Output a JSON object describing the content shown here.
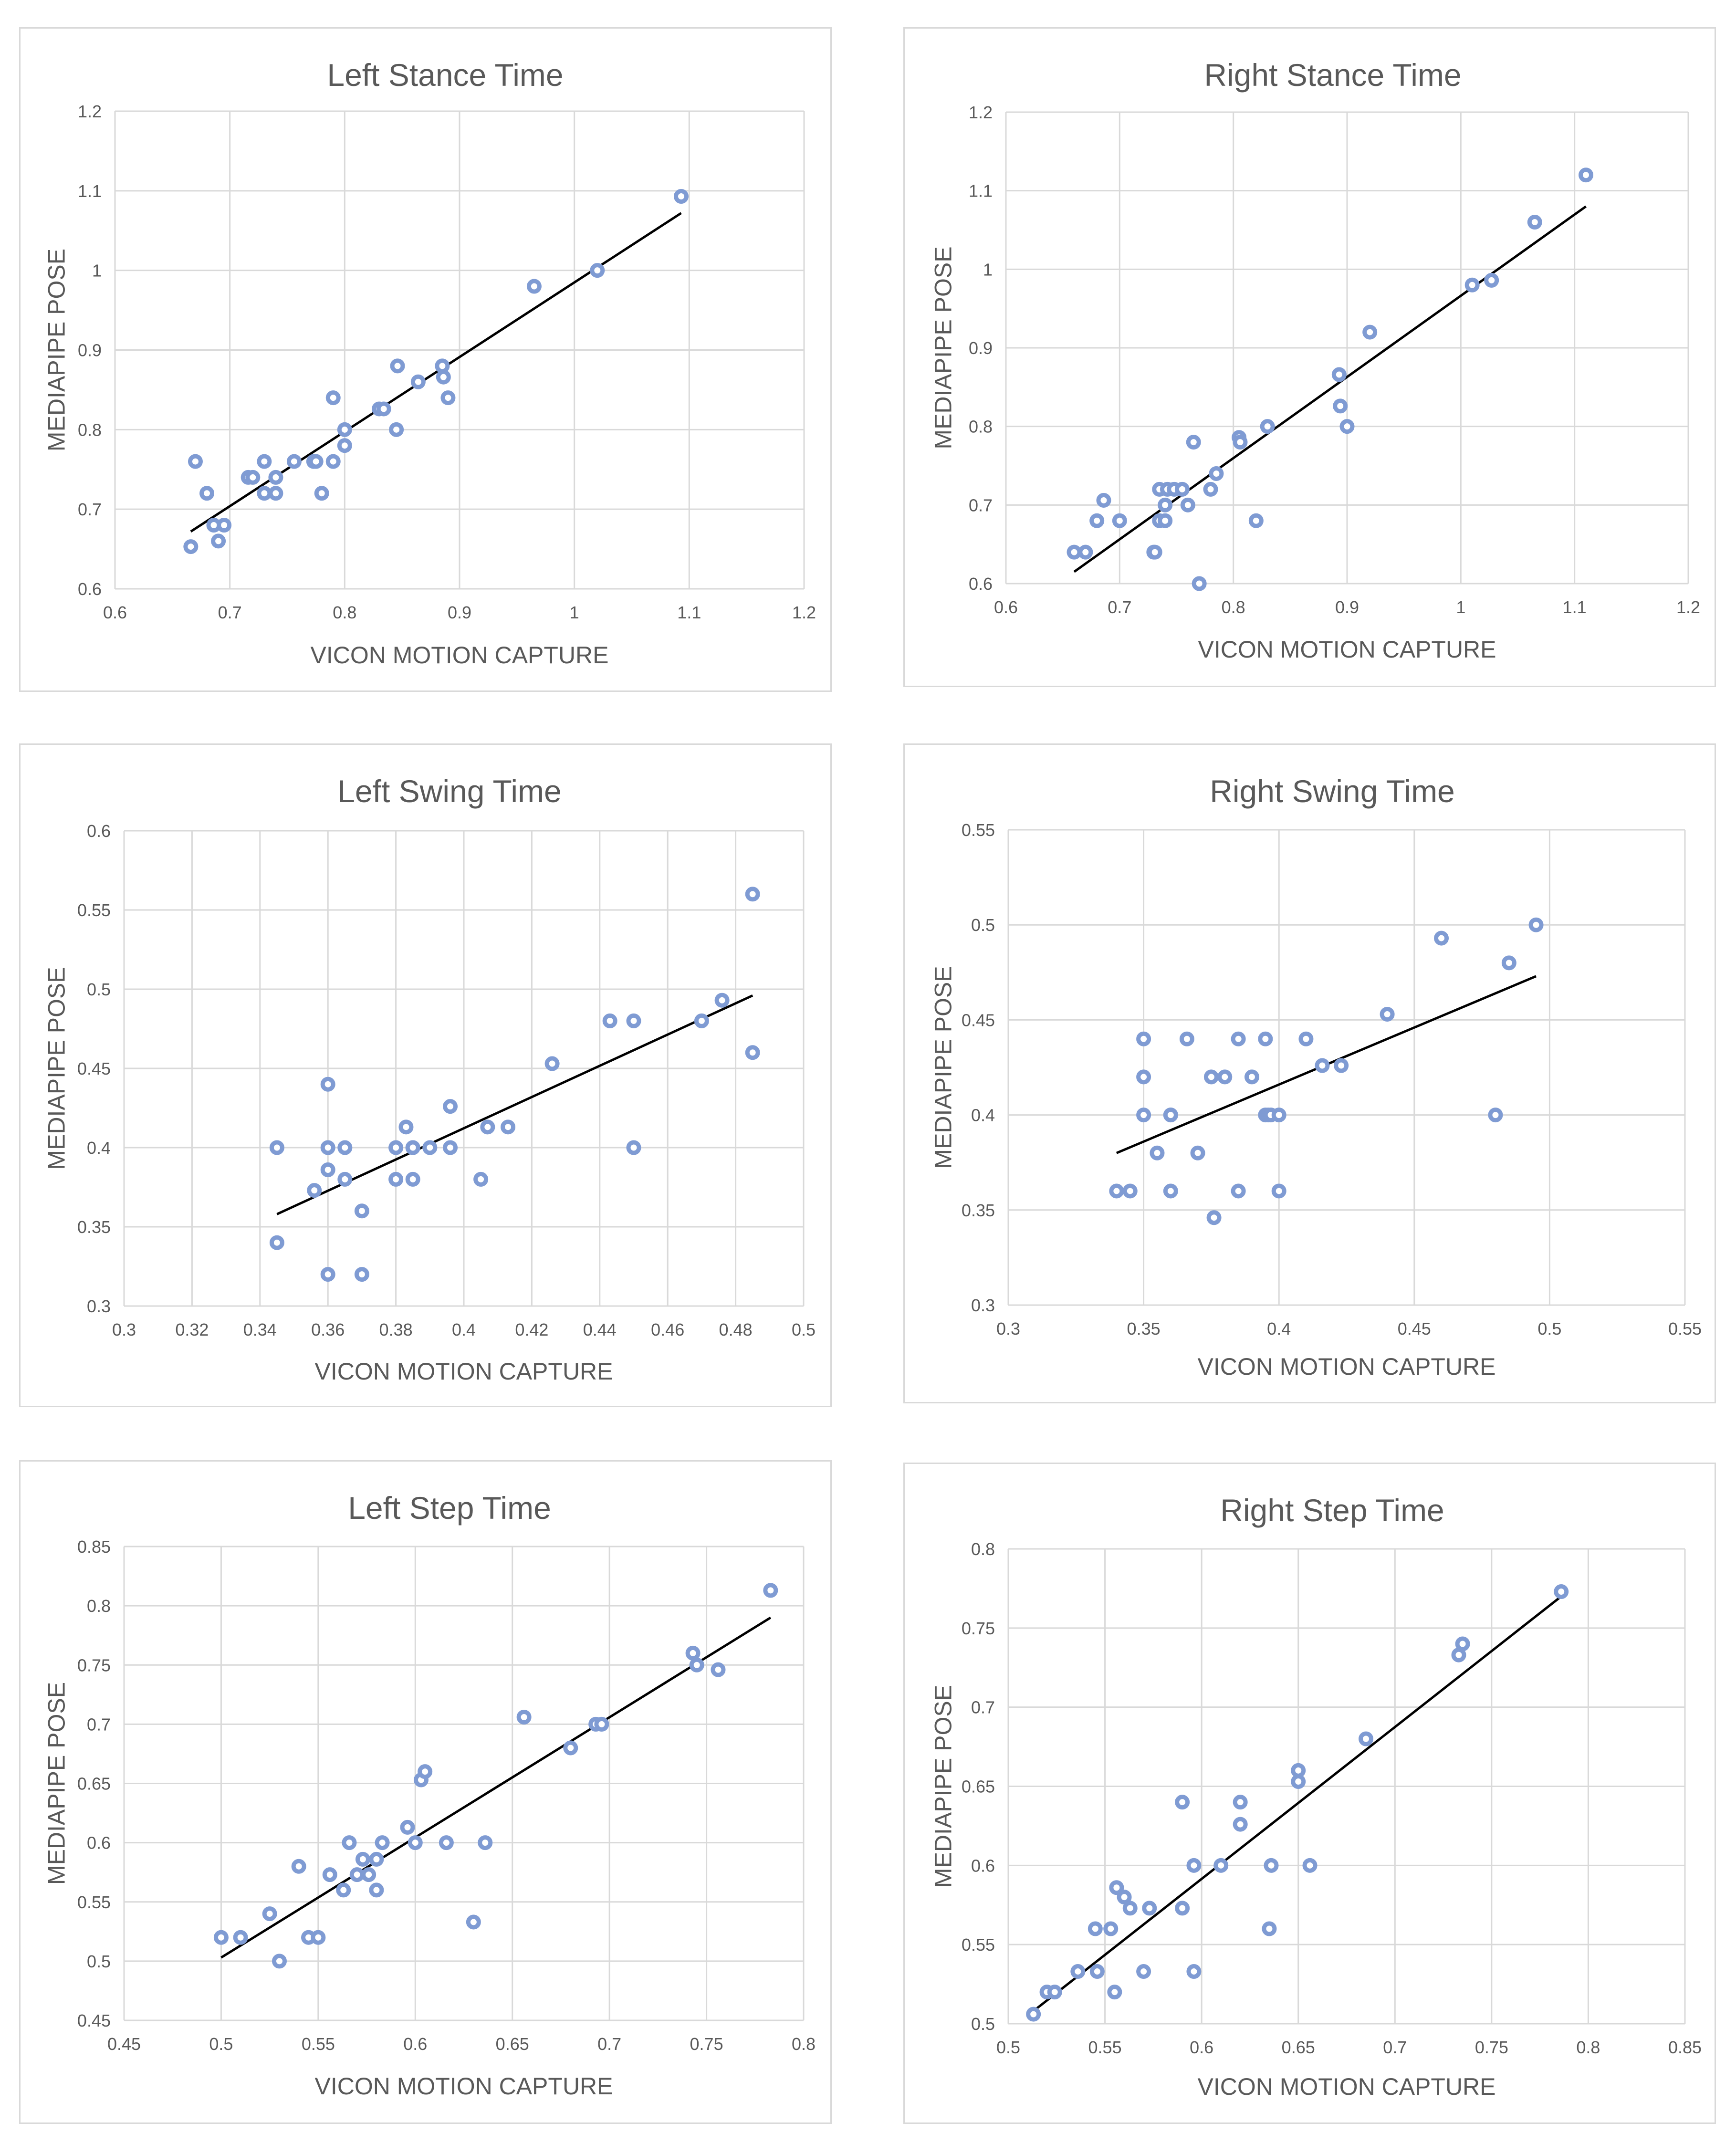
{
  "chart_data": [
    {
      "type": "scatter",
      "title": "Left Stance Time",
      "xlabel": "VICON MOTION CAPTURE",
      "ylabel": "MEDIAPIPE POSE",
      "xlim": [
        0.6,
        1.2
      ],
      "ylim": [
        0.6,
        1.2
      ],
      "xticks": [
        0.6,
        0.7,
        0.8,
        0.9,
        1.0,
        1.1,
        1.2
      ],
      "yticks": [
        0.6,
        0.7,
        0.8,
        0.9,
        1.0,
        1.1,
        1.2
      ],
      "xtick_labels": [
        "0.6",
        "0.7",
        "0.8",
        "0.9",
        "1",
        "1.1",
        "1.2"
      ],
      "ytick_labels": [
        "0.6",
        "0.7",
        "0.8",
        "0.9",
        "1",
        "1.1",
        "1.2"
      ],
      "points": [
        [
          0.666,
          0.653
        ],
        [
          0.67,
          0.76
        ],
        [
          0.68,
          0.72
        ],
        [
          0.686,
          0.68
        ],
        [
          0.69,
          0.66
        ],
        [
          0.695,
          0.68
        ],
        [
          0.716,
          0.74
        ],
        [
          0.72,
          0.74
        ],
        [
          0.73,
          0.76
        ],
        [
          0.73,
          0.72
        ],
        [
          0.74,
          0.74
        ],
        [
          0.74,
          0.72
        ],
        [
          0.756,
          0.76
        ],
        [
          0.773,
          0.76
        ],
        [
          0.775,
          0.76
        ],
        [
          0.78,
          0.72
        ],
        [
          0.79,
          0.76
        ],
        [
          0.79,
          0.84
        ],
        [
          0.8,
          0.78
        ],
        [
          0.8,
          0.8
        ],
        [
          0.83,
          0.826
        ],
        [
          0.834,
          0.826
        ],
        [
          0.845,
          0.8
        ],
        [
          0.846,
          0.88
        ],
        [
          0.864,
          0.86
        ],
        [
          0.885,
          0.88
        ],
        [
          0.886,
          0.866
        ],
        [
          0.89,
          0.84
        ],
        [
          0.965,
          0.98
        ],
        [
          1.02,
          1.0
        ],
        [
          1.093,
          1.093
        ]
      ],
      "trendline": [
        [
          0.666,
          0.672
        ],
        [
          1.093,
          1.072
        ]
      ]
    },
    {
      "type": "scatter",
      "title": "Right Stance Time",
      "xlabel": "VICON MOTION CAPTURE",
      "ylabel": "MEDIAPIPE POSE",
      "xlim": [
        0.6,
        1.2
      ],
      "ylim": [
        0.6,
        1.2
      ],
      "xticks": [
        0.6,
        0.7,
        0.8,
        0.9,
        1.0,
        1.1,
        1.2
      ],
      "yticks": [
        0.6,
        0.7,
        0.8,
        0.9,
        1.0,
        1.1,
        1.2
      ],
      "xtick_labels": [
        "0.6",
        "0.7",
        "0.8",
        "0.9",
        "1",
        "1.1",
        "1.2"
      ],
      "ytick_labels": [
        "0.6",
        "0.7",
        "0.8",
        "0.9",
        "1",
        "1.1",
        "1.2"
      ],
      "points": [
        [
          0.66,
          0.64
        ],
        [
          0.67,
          0.64
        ],
        [
          0.68,
          0.68
        ],
        [
          0.686,
          0.706
        ],
        [
          0.7,
          0.68
        ],
        [
          0.73,
          0.64
        ],
        [
          0.731,
          0.64
        ],
        [
          0.735,
          0.68
        ],
        [
          0.735,
          0.72
        ],
        [
          0.74,
          0.68
        ],
        [
          0.74,
          0.7
        ],
        [
          0.742,
          0.72
        ],
        [
          0.748,
          0.72
        ],
        [
          0.755,
          0.72
        ],
        [
          0.76,
          0.7
        ],
        [
          0.765,
          0.78
        ],
        [
          0.77,
          0.6
        ],
        [
          0.78,
          0.72
        ],
        [
          0.785,
          0.74
        ],
        [
          0.805,
          0.786
        ],
        [
          0.806,
          0.78
        ],
        [
          0.82,
          0.68
        ],
        [
          0.83,
          0.8
        ],
        [
          0.893,
          0.866
        ],
        [
          0.894,
          0.826
        ],
        [
          0.9,
          0.8
        ],
        [
          0.92,
          0.92
        ],
        [
          1.01,
          0.98
        ],
        [
          1.027,
          0.986
        ],
        [
          1.065,
          1.06
        ],
        [
          1.11,
          1.12
        ]
      ],
      "trendline": [
        [
          0.66,
          0.615
        ],
        [
          1.11,
          1.08
        ]
      ]
    },
    {
      "type": "scatter",
      "title": "Left Swing Time",
      "xlabel": "VICON MOTION CAPTURE",
      "ylabel": "MEDIAPIPE POSE",
      "xlim": [
        0.3,
        0.5
      ],
      "ylim": [
        0.3,
        0.6
      ],
      "xticks": [
        0.3,
        0.32,
        0.34,
        0.36,
        0.38,
        0.4,
        0.42,
        0.44,
        0.46,
        0.48,
        0.5
      ],
      "yticks": [
        0.3,
        0.35,
        0.4,
        0.45,
        0.5,
        0.55,
        0.6
      ],
      "xtick_labels": [
        "0.3",
        "0.32",
        "0.34",
        "0.36",
        "0.38",
        "0.4",
        "0.42",
        "0.44",
        "0.46",
        "0.48",
        "0.5"
      ],
      "ytick_labels": [
        "0.3",
        "0.35",
        "0.4",
        "0.45",
        "0.5",
        "0.55",
        "0.6"
      ],
      "points": [
        [
          0.345,
          0.4
        ],
        [
          0.345,
          0.34
        ],
        [
          0.356,
          0.373
        ],
        [
          0.36,
          0.32
        ],
        [
          0.36,
          0.386
        ],
        [
          0.36,
          0.4
        ],
        [
          0.36,
          0.44
        ],
        [
          0.365,
          0.38
        ],
        [
          0.365,
          0.4
        ],
        [
          0.37,
          0.32
        ],
        [
          0.37,
          0.36
        ],
        [
          0.38,
          0.38
        ],
        [
          0.38,
          0.4
        ],
        [
          0.383,
          0.413
        ],
        [
          0.385,
          0.38
        ],
        [
          0.385,
          0.4
        ],
        [
          0.385,
          0.4
        ],
        [
          0.39,
          0.4
        ],
        [
          0.396,
          0.4
        ],
        [
          0.396,
          0.426
        ],
        [
          0.405,
          0.38
        ],
        [
          0.407,
          0.413
        ],
        [
          0.413,
          0.413
        ],
        [
          0.426,
          0.453
        ],
        [
          0.443,
          0.48
        ],
        [
          0.45,
          0.48
        ],
        [
          0.45,
          0.4
        ],
        [
          0.47,
          0.48
        ],
        [
          0.476,
          0.493
        ],
        [
          0.485,
          0.46
        ],
        [
          0.485,
          0.56
        ]
      ],
      "trendline": [
        [
          0.345,
          0.358
        ],
        [
          0.485,
          0.496
        ]
      ]
    },
    {
      "type": "scatter",
      "title": "Right Swing Time",
      "xlabel": "VICON MOTION CAPTURE",
      "ylabel": "MEDIAPIPE POSE",
      "xlim": [
        0.3,
        0.55
      ],
      "ylim": [
        0.3,
        0.55
      ],
      "xticks": [
        0.3,
        0.35,
        0.4,
        0.45,
        0.5,
        0.55
      ],
      "yticks": [
        0.3,
        0.35,
        0.4,
        0.45,
        0.5,
        0.55
      ],
      "xtick_labels": [
        "0.3",
        "0.35",
        "0.4",
        "0.45",
        "0.5",
        "0.55"
      ],
      "ytick_labels": [
        "0.3",
        "0.35",
        "0.4",
        "0.45",
        "0.5",
        "0.55"
      ],
      "points": [
        [
          0.34,
          0.36
        ],
        [
          0.345,
          0.36
        ],
        [
          0.35,
          0.4
        ],
        [
          0.35,
          0.42
        ],
        [
          0.35,
          0.44
        ],
        [
          0.355,
          0.38
        ],
        [
          0.36,
          0.36
        ],
        [
          0.36,
          0.4
        ],
        [
          0.36,
          0.4
        ],
        [
          0.366,
          0.44
        ],
        [
          0.37,
          0.38
        ],
        [
          0.375,
          0.42
        ],
        [
          0.376,
          0.346
        ],
        [
          0.38,
          0.42
        ],
        [
          0.385,
          0.36
        ],
        [
          0.385,
          0.44
        ],
        [
          0.39,
          0.42
        ],
        [
          0.395,
          0.44
        ],
        [
          0.395,
          0.4
        ],
        [
          0.396,
          0.4
        ],
        [
          0.397,
          0.4
        ],
        [
          0.4,
          0.4
        ],
        [
          0.4,
          0.36
        ],
        [
          0.41,
          0.44
        ],
        [
          0.416,
          0.426
        ],
        [
          0.423,
          0.426
        ],
        [
          0.44,
          0.453
        ],
        [
          0.46,
          0.493
        ],
        [
          0.48,
          0.4
        ],
        [
          0.485,
          0.48
        ],
        [
          0.495,
          0.5
        ]
      ],
      "trendline": [
        [
          0.34,
          0.38
        ],
        [
          0.495,
          0.473
        ]
      ]
    },
    {
      "type": "scatter",
      "title": "Left Step Time",
      "xlabel": "VICON MOTION CAPTURE",
      "ylabel": "MEDIAPIPE POSE",
      "xlim": [
        0.45,
        0.8
      ],
      "ylim": [
        0.45,
        0.85
      ],
      "xticks": [
        0.45,
        0.5,
        0.55,
        0.6,
        0.65,
        0.7,
        0.75,
        0.8
      ],
      "yticks": [
        0.45,
        0.5,
        0.55,
        0.6,
        0.65,
        0.7,
        0.75,
        0.8,
        0.85
      ],
      "xtick_labels": [
        "0.45",
        "0.5",
        "0.55",
        "0.6",
        "0.65",
        "0.7",
        "0.75",
        "0.8"
      ],
      "ytick_labels": [
        "0.45",
        "0.5",
        "0.55",
        "0.6",
        "0.65",
        "0.7",
        "0.75",
        "0.8",
        "0.85"
      ],
      "points": [
        [
          0.5,
          0.52
        ],
        [
          0.51,
          0.52
        ],
        [
          0.525,
          0.54
        ],
        [
          0.53,
          0.5
        ],
        [
          0.54,
          0.58
        ],
        [
          0.545,
          0.52
        ],
        [
          0.55,
          0.52
        ],
        [
          0.556,
          0.573
        ],
        [
          0.563,
          0.56
        ],
        [
          0.566,
          0.6
        ],
        [
          0.57,
          0.573
        ],
        [
          0.573,
          0.586
        ],
        [
          0.576,
          0.573
        ],
        [
          0.58,
          0.586
        ],
        [
          0.58,
          0.56
        ],
        [
          0.583,
          0.6
        ],
        [
          0.596,
          0.613
        ],
        [
          0.6,
          0.6
        ],
        [
          0.603,
          0.653
        ],
        [
          0.605,
          0.66
        ],
        [
          0.616,
          0.6
        ],
        [
          0.63,
          0.533
        ],
        [
          0.636,
          0.6
        ],
        [
          0.656,
          0.706
        ],
        [
          0.68,
          0.68
        ],
        [
          0.693,
          0.7
        ],
        [
          0.696,
          0.7
        ],
        [
          0.743,
          0.76
        ],
        [
          0.745,
          0.75
        ],
        [
          0.756,
          0.746
        ],
        [
          0.783,
          0.813
        ]
      ],
      "trendline": [
        [
          0.5,
          0.503
        ],
        [
          0.783,
          0.79
        ]
      ]
    },
    {
      "type": "scatter",
      "title": "Right Step Time",
      "xlabel": "VICON MOTION CAPTURE",
      "ylabel": "MEDIAPIPE POSE",
      "xlim": [
        0.5,
        0.85
      ],
      "ylim": [
        0.5,
        0.8
      ],
      "xticks": [
        0.5,
        0.55,
        0.6,
        0.65,
        0.7,
        0.75,
        0.8,
        0.85
      ],
      "yticks": [
        0.5,
        0.55,
        0.6,
        0.65,
        0.7,
        0.75,
        0.8
      ],
      "xtick_labels": [
        "0.5",
        "0.55",
        "0.6",
        "0.65",
        "0.7",
        "0.75",
        "0.8",
        "0.85"
      ],
      "ytick_labels": [
        "0.5",
        "0.55",
        "0.6",
        "0.65",
        "0.7",
        "0.75",
        "0.8"
      ],
      "points": [
        [
          0.513,
          0.506
        ],
        [
          0.52,
          0.52
        ],
        [
          0.524,
          0.52
        ],
        [
          0.536,
          0.533
        ],
        [
          0.545,
          0.56
        ],
        [
          0.546,
          0.533
        ],
        [
          0.553,
          0.56
        ],
        [
          0.555,
          0.52
        ],
        [
          0.556,
          0.586
        ],
        [
          0.56,
          0.58
        ],
        [
          0.563,
          0.573
        ],
        [
          0.573,
          0.573
        ],
        [
          0.57,
          0.533
        ],
        [
          0.59,
          0.573
        ],
        [
          0.59,
          0.64
        ],
        [
          0.596,
          0.6
        ],
        [
          0.596,
          0.533
        ],
        [
          0.61,
          0.6
        ],
        [
          0.62,
          0.64
        ],
        [
          0.62,
          0.626
        ],
        [
          0.635,
          0.56
        ],
        [
          0.636,
          0.6
        ],
        [
          0.65,
          0.66
        ],
        [
          0.65,
          0.653
        ],
        [
          0.656,
          0.6
        ],
        [
          0.685,
          0.68
        ],
        [
          0.733,
          0.733
        ],
        [
          0.735,
          0.74
        ],
        [
          0.786,
          0.773
        ]
      ],
      "trendline": [
        [
          0.513,
          0.508
        ],
        [
          0.786,
          0.77
        ]
      ]
    }
  ]
}
